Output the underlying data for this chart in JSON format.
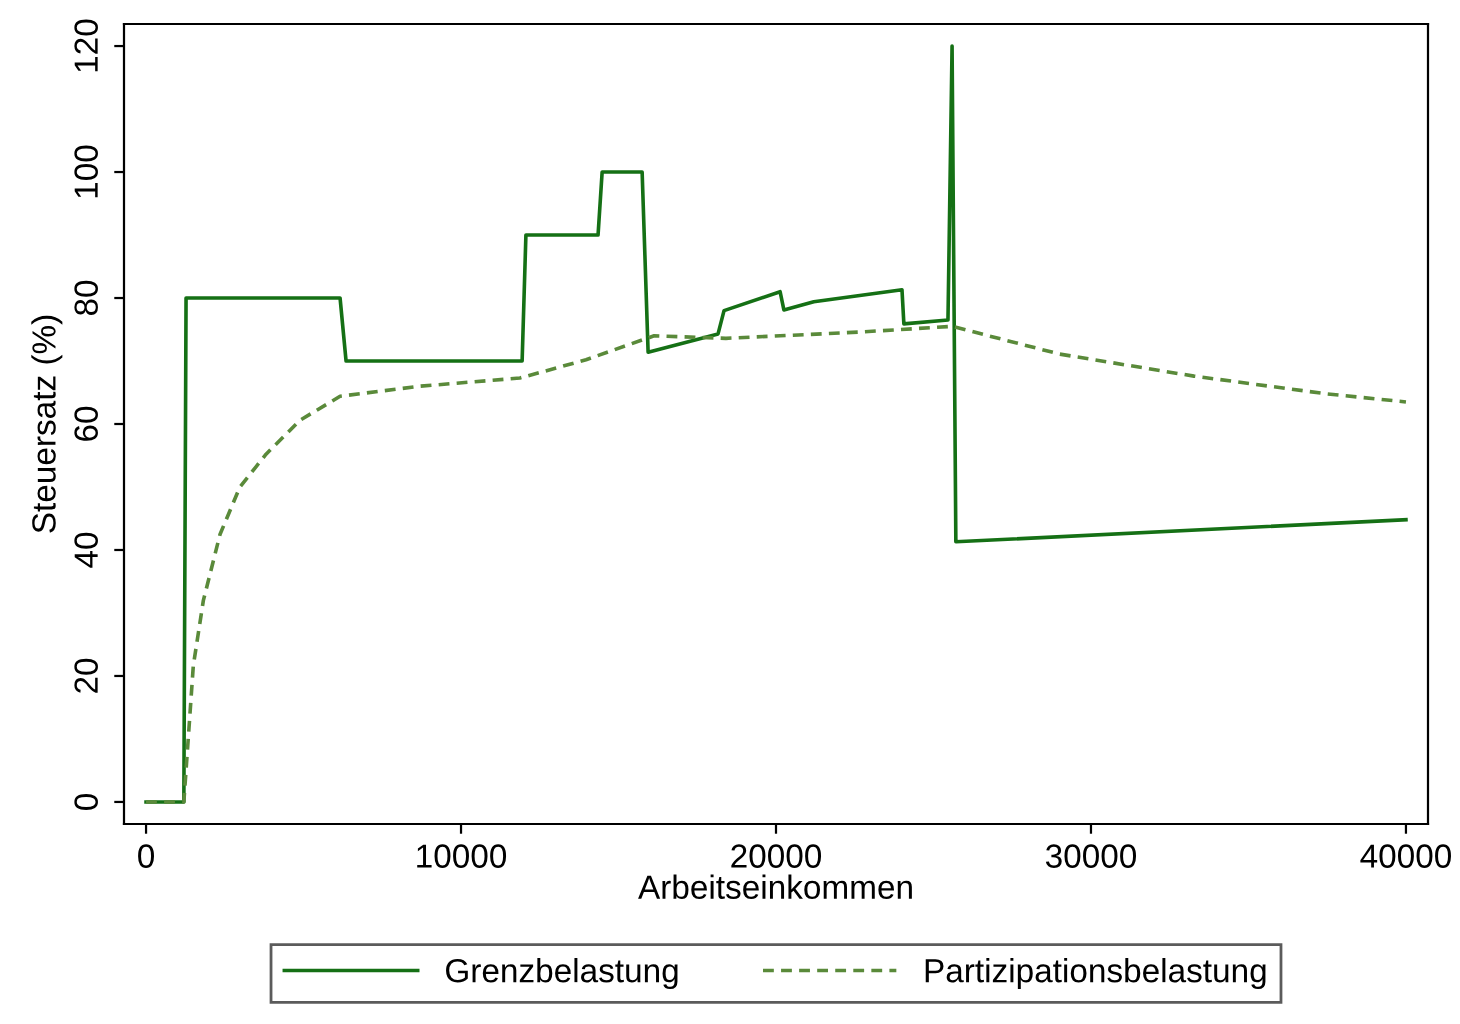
{
  "chart_data": {
    "type": "line",
    "xlabel": "Arbeitseinkommen",
    "ylabel": "Steuersatz (%)",
    "xlim": [
      -700,
      40700
    ],
    "ylim": [
      -3.5,
      123.5
    ],
    "xticks": [
      0,
      10000,
      20000,
      30000,
      40000
    ],
    "yticks": [
      0,
      20,
      40,
      60,
      80,
      100,
      120
    ],
    "grid": false,
    "legend": "bottom",
    "series": [
      {
        "name": "Grenzbelastung",
        "color": "#157015",
        "line_style": "solid",
        "x": [
          0,
          1200,
          1270,
          6160,
          6350,
          11940,
          12060,
          14350,
          14480,
          15750,
          15940,
          18160,
          18350,
          20130,
          20250,
          21200,
          24000,
          24060,
          25460,
          25590,
          25710,
          40000
        ],
        "values": [
          0,
          0,
          80,
          80,
          70,
          70,
          90,
          90,
          100,
          100,
          71.4,
          74.3,
          78,
          81,
          78.1,
          79.4,
          81.3,
          75.9,
          76.5,
          120,
          41.3,
          44.8
        ]
      },
      {
        "name": "Partizipationsbelastung",
        "color": "#5a8a3a",
        "line_style": "dashed",
        "x": [
          0,
          1200,
          1500,
          1820,
          2350,
          2980,
          3810,
          4890,
          6160,
          8700,
          11870,
          13970,
          16130,
          18410,
          22670,
          25590,
          29000,
          33270,
          37460,
          40000
        ],
        "values": [
          0,
          0,
          21.6,
          32,
          42.5,
          50,
          55.2,
          60.6,
          64.4,
          66,
          67.3,
          70.2,
          74,
          73.6,
          74.6,
          75.5,
          71.1,
          67.6,
          64.8,
          63.5
        ]
      }
    ]
  }
}
